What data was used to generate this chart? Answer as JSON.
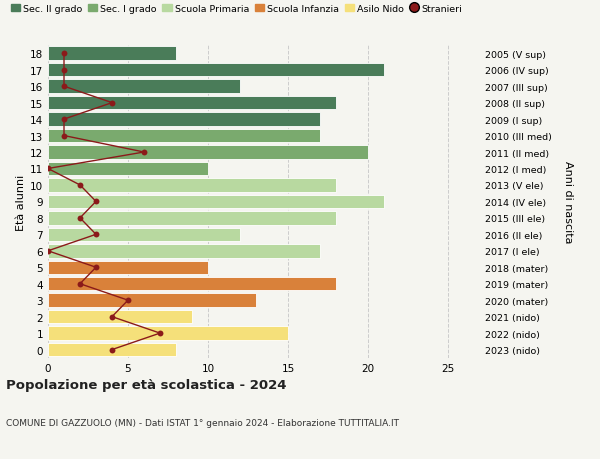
{
  "ages": [
    18,
    17,
    16,
    15,
    14,
    13,
    12,
    11,
    10,
    9,
    8,
    7,
    6,
    5,
    4,
    3,
    2,
    1,
    0
  ],
  "years": [
    "2005 (V sup)",
    "2006 (IV sup)",
    "2007 (III sup)",
    "2008 (II sup)",
    "2009 (I sup)",
    "2010 (III med)",
    "2011 (II med)",
    "2012 (I med)",
    "2013 (V ele)",
    "2014 (IV ele)",
    "2015 (III ele)",
    "2016 (II ele)",
    "2017 (I ele)",
    "2018 (mater)",
    "2019 (mater)",
    "2020 (mater)",
    "2021 (nido)",
    "2022 (nido)",
    "2023 (nido)"
  ],
  "bar_values": [
    8,
    21,
    12,
    18,
    17,
    17,
    20,
    10,
    18,
    21,
    18,
    12,
    17,
    10,
    18,
    13,
    9,
    15,
    8
  ],
  "stranieri": [
    1,
    1,
    1,
    4,
    1,
    1,
    6,
    0,
    2,
    3,
    2,
    3,
    0,
    3,
    2,
    5,
    4,
    7,
    4
  ],
  "bar_colors": [
    "#4a7c59",
    "#4a7c59",
    "#4a7c59",
    "#4a7c59",
    "#4a7c59",
    "#7aaa6e",
    "#7aaa6e",
    "#7aaa6e",
    "#b8d9a0",
    "#b8d9a0",
    "#b8d9a0",
    "#b8d9a0",
    "#b8d9a0",
    "#d9813a",
    "#d9813a",
    "#d9813a",
    "#f5e07a",
    "#f5e07a",
    "#f5e07a"
  ],
  "legend_labels": [
    "Sec. II grado",
    "Sec. I grado",
    "Scuola Primaria",
    "Scuola Infanzia",
    "Asilo Nido",
    "Stranieri"
  ],
  "legend_colors": [
    "#4a7c59",
    "#7aaa6e",
    "#b8d9a0",
    "#d9813a",
    "#f5e07a",
    "#8b1a1a"
  ],
  "stranieri_color": "#8b1a1a",
  "title": "Popolazione per età scolastica - 2024",
  "subtitle": "COMUNE DI GAZZUOLO (MN) - Dati ISTAT 1° gennaio 2024 - Elaborazione TUTTITALIA.IT",
  "right_ylabel": "Anni di nascita",
  "left_ylabel": "Età alunni",
  "xlim": [
    0,
    27
  ],
  "xticks": [
    0,
    5,
    10,
    15,
    20,
    25
  ],
  "background_color": "#f5f5f0",
  "grid_color": "#cccccc",
  "bar_height": 0.82,
  "bar_edge_color": "white",
  "bar_edge_width": 0.6
}
